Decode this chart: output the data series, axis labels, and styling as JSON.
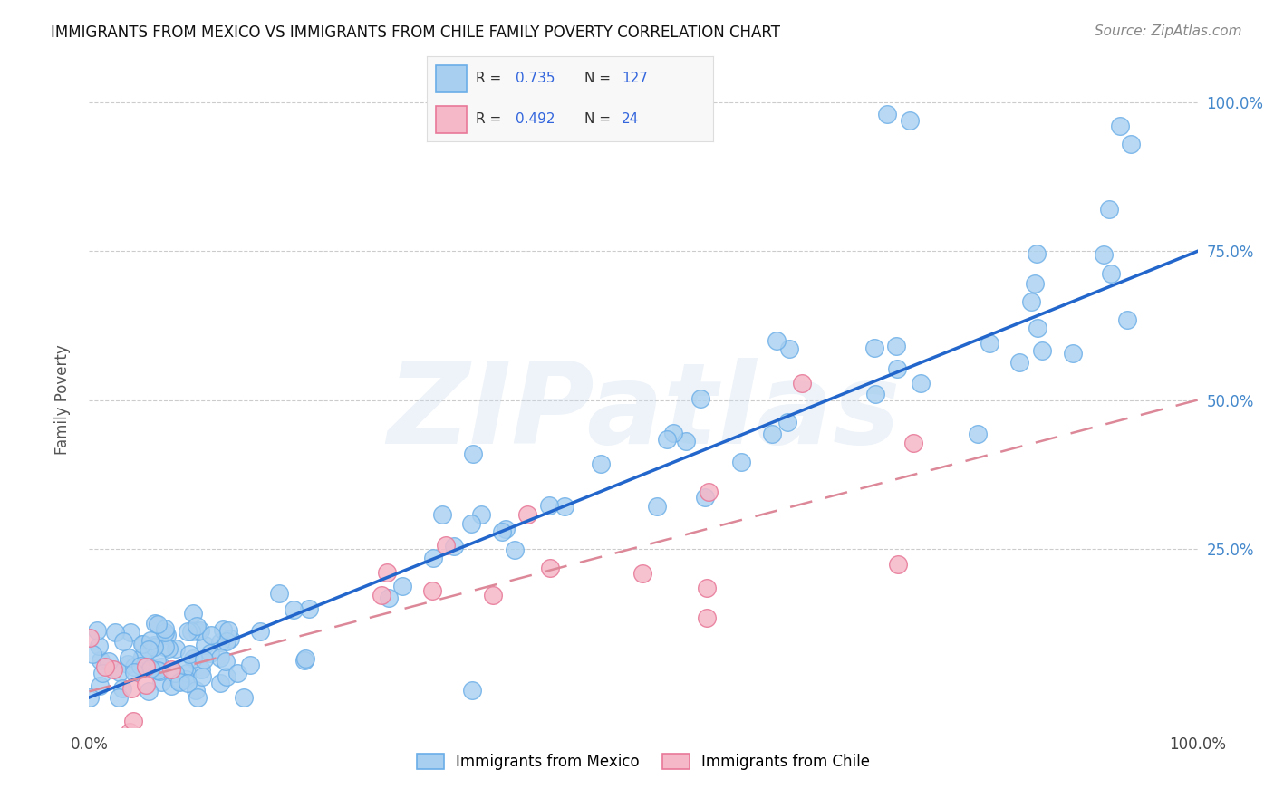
{
  "title": "IMMIGRANTS FROM MEXICO VS IMMIGRANTS FROM CHILE FAMILY POVERTY CORRELATION CHART",
  "source": "Source: ZipAtlas.com",
  "ylabel": "Family Poverty",
  "xlim": [
    0,
    1.0
  ],
  "ylim": [
    0,
    1.0
  ],
  "mexico_color": "#a8cff0",
  "mexico_edge_color": "#6aaee8",
  "mexico_line_color": "#2266cc",
  "chile_color": "#f5b8c8",
  "chile_edge_color": "#e87898",
  "chile_line_color": "#dd8899",
  "mexico_R": 0.735,
  "mexico_N": 127,
  "chile_R": 0.492,
  "chile_N": 24,
  "watermark": "ZIPatlas",
  "background_color": "#ffffff",
  "grid_color": "#cccccc",
  "right_tick_color": "#4488cc",
  "legend_R_color": "#3366dd"
}
